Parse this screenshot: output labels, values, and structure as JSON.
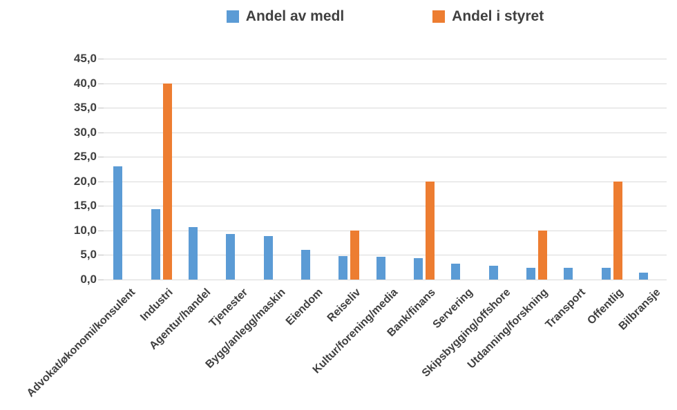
{
  "chart_data": {
    "type": "bar",
    "title": "",
    "xlabel": "",
    "ylabel": "",
    "grid": true,
    "legend_position": "top",
    "ylim": [
      0,
      45
    ],
    "ytick_step": 5,
    "yticks": [
      {
        "value": 45,
        "label": "45,0"
      },
      {
        "value": 40,
        "label": "40,0"
      },
      {
        "value": 35,
        "label": "35,0"
      },
      {
        "value": 30,
        "label": "30,0"
      },
      {
        "value": 25,
        "label": "25,0"
      },
      {
        "value": 20,
        "label": "20,0"
      },
      {
        "value": 15,
        "label": "15,0"
      },
      {
        "value": 10,
        "label": "10,0"
      },
      {
        "value": 5,
        "label": "5,0"
      },
      {
        "value": 0,
        "label": "0,0"
      }
    ],
    "categories": [
      "Advokat/økonomi/konsulent",
      "Industri",
      "Agentur/handel",
      "Tjenester",
      "Bygg/anlegg/maskin",
      "Eiendom",
      "Reiseliv",
      "Kultur/forening/media",
      "Bank/finans",
      "Servering",
      "Skipsbygging/offshore",
      "Utdanning/forskning",
      "Transport",
      "Offentlig",
      "Bilbransje"
    ],
    "series": [
      {
        "name": "Andel av medl",
        "color": "#5B9BD5",
        "values": [
          23.0,
          14.4,
          10.7,
          9.3,
          8.9,
          6.1,
          4.8,
          4.7,
          4.3,
          3.3,
          2.8,
          2.4,
          2.4,
          2.4,
          1.4
        ]
      },
      {
        "name": "Andel i styret",
        "color": "#ED7D31",
        "values": [
          0,
          40.0,
          0,
          0,
          0,
          0,
          10.0,
          0,
          20.0,
          0,
          0,
          10.0,
          0,
          20.0,
          0
        ]
      }
    ],
    "colors": {
      "gridline": "#d9d9d9",
      "text": "#404040"
    }
  }
}
